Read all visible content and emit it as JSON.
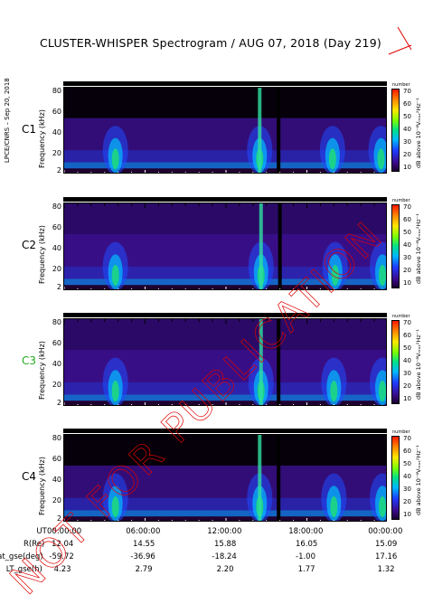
{
  "title": "CLUSTER-WHISPER Spectrogram / AUG 07, 2018 (Day 219)",
  "side_note": "LPCE/CNRS – Sep 20, 2018",
  "watermark_text": "NOT FOR PUBLICATION",
  "panels": [
    {
      "label": "C1",
      "label_color": "#000000",
      "ylabel": "Frequency (kHz)",
      "yticks": [
        "80",
        "60",
        "40",
        "20",
        "2"
      ],
      "cbar_head": "number"
    },
    {
      "label": "C2",
      "label_color": "#000000",
      "ylabel": "Frequency (kHz)",
      "yticks": [
        "80",
        "60",
        "40",
        "20",
        "2"
      ],
      "cbar_head": "number"
    },
    {
      "label": "C3",
      "label_color": "#22aa22",
      "ylabel": "Frequency (kHz)",
      "yticks": [
        "80",
        "60",
        "40",
        "20",
        "2"
      ],
      "cbar_head": "number"
    },
    {
      "label": "C4",
      "label_color": "#000000",
      "ylabel": "Frequency (kHz)",
      "yticks": [
        "80",
        "60",
        "40",
        "20",
        "2"
      ],
      "cbar_head": "number"
    }
  ],
  "colorbar": {
    "ticks": [
      "70",
      "60",
      "50",
      "40",
      "30",
      "20",
      "10"
    ],
    "label": "dB above 10⁻⁸Vₘₐₓ²Hz⁻¹"
  },
  "ephemeris": {
    "rows": [
      {
        "label": "UT",
        "values": [
          "00:00:00",
          "06:00:00",
          "12:00:00",
          "18:00:00",
          "00:00:00"
        ]
      },
      {
        "label": "R(Re)",
        "values": [
          "12.04",
          "14.55",
          "15.88",
          "16.05",
          "15.09"
        ]
      },
      {
        "label": "Lat_gse(deg)",
        "values": [
          "-59.72",
          "-36.96",
          "-18.24",
          "-1.00",
          "17.16"
        ]
      },
      {
        "label": "LT_gse(h)",
        "values": [
          "4.23",
          "2.79",
          "2.20",
          "1.77",
          "1.32"
        ]
      }
    ]
  },
  "chart_data": {
    "type": "heatmap",
    "title": "CLUSTER-WHISPER Spectrogram / AUG 07, 2018 (Day 219)",
    "x_axis": {
      "label": "UT",
      "ticks": [
        "00:00:00",
        "06:00:00",
        "12:00:00",
        "18:00:00",
        "00:00:00"
      ],
      "range_hours": [
        0,
        24
      ]
    },
    "y_axis": {
      "label": "Frequency (kHz)",
      "range": [
        2,
        82
      ],
      "ticks": [
        2,
        20,
        40,
        60,
        80
      ]
    },
    "color_scale": {
      "label": "dB above 10^-8 V^2 Hz^-1",
      "range": [
        10,
        70
      ],
      "ticks": [
        10,
        20,
        30,
        40,
        50,
        60,
        70
      ]
    },
    "series": [
      {
        "name": "C1",
        "emissions_hours": [
          3.8,
          14.5,
          19.9,
          23.5
        ],
        "gap_hours": [
          15.9
        ]
      },
      {
        "name": "C2",
        "emissions_hours": [
          3.8,
          14.6,
          20.1,
          23.6
        ],
        "gap_hours": [
          16.0
        ]
      },
      {
        "name": "C3",
        "emissions_hours": [
          3.8,
          14.6,
          20.0,
          23.6
        ],
        "gap_hours": [
          15.9
        ]
      },
      {
        "name": "C4",
        "emissions_hours": [
          3.8,
          14.5,
          20.0,
          23.6
        ],
        "gap_hours": [
          15.9
        ]
      }
    ]
  }
}
